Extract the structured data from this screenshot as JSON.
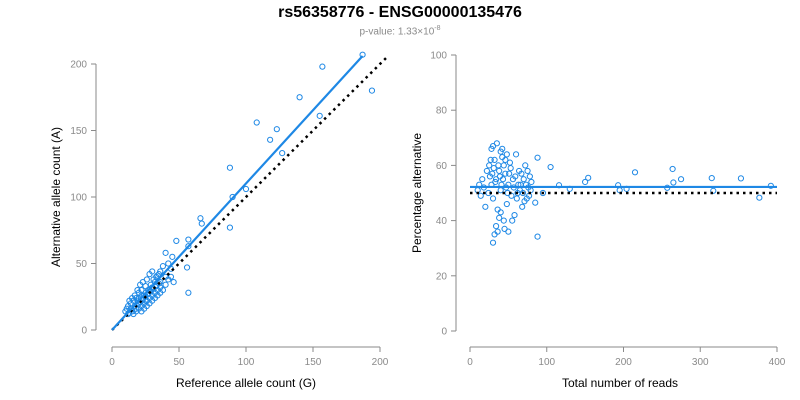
{
  "title": "rs56358776 - ENSG00000135476",
  "subtitle": {
    "prefix": "p-value: 1.33×10",
    "exponent": "-8"
  },
  "colors": {
    "points": "#1e88e5",
    "fit_line": "#1e88e5",
    "reference_line": "#000000",
    "axis": "#8a8a8a"
  },
  "chart_data": [
    {
      "type": "scatter",
      "xlabel": "Reference allele count (G)",
      "ylabel": "Alternative allele count (A)",
      "xlim": [
        0,
        200
      ],
      "ylim": [
        0,
        200
      ],
      "xticks": [
        0,
        50,
        100,
        150,
        200
      ],
      "yticks": [
        0,
        50,
        100,
        150,
        200
      ],
      "fit_line": {
        "x": [
          0,
          187
        ],
        "y": [
          0,
          206
        ]
      },
      "reference_line": {
        "x": [
          0,
          205
        ],
        "y": [
          0,
          205
        ]
      },
      "points": [
        [
          187,
          207
        ],
        [
          194,
          180
        ],
        [
          157,
          198
        ],
        [
          140,
          175
        ],
        [
          155,
          161
        ],
        [
          108,
          156
        ],
        [
          123,
          151
        ],
        [
          118,
          143
        ],
        [
          88,
          122
        ],
        [
          127,
          133
        ],
        [
          100,
          106
        ],
        [
          90,
          100
        ],
        [
          88,
          77
        ],
        [
          66,
          84
        ],
        [
          67,
          80
        ],
        [
          57,
          68
        ],
        [
          57,
          63
        ],
        [
          48,
          67
        ],
        [
          56,
          47
        ],
        [
          57,
          28
        ],
        [
          45,
          55
        ],
        [
          40,
          58
        ],
        [
          42,
          50
        ],
        [
          44,
          46
        ],
        [
          38,
          48
        ],
        [
          36,
          44
        ],
        [
          40,
          40
        ],
        [
          34,
          41
        ],
        [
          30,
          44
        ],
        [
          28,
          42
        ],
        [
          26,
          38
        ],
        [
          32,
          36
        ],
        [
          30,
          32
        ],
        [
          28,
          30
        ],
        [
          25,
          33
        ],
        [
          22,
          30
        ],
        [
          20,
          28
        ],
        [
          24,
          26
        ],
        [
          18,
          24
        ],
        [
          16,
          22
        ],
        [
          14,
          20
        ],
        [
          12,
          18
        ],
        [
          15,
          14
        ],
        [
          18,
          16
        ],
        [
          20,
          20
        ],
        [
          22,
          18
        ],
        [
          24,
          20
        ],
        [
          26,
          22
        ],
        [
          28,
          24
        ],
        [
          30,
          26
        ],
        [
          32,
          28
        ],
        [
          34,
          30
        ],
        [
          36,
          32
        ],
        [
          12,
          12
        ],
        [
          10,
          14
        ],
        [
          14,
          16
        ],
        [
          16,
          12
        ],
        [
          18,
          14
        ],
        [
          20,
          16
        ],
        [
          22,
          14
        ],
        [
          24,
          16
        ],
        [
          26,
          18
        ],
        [
          28,
          20
        ],
        [
          30,
          22
        ],
        [
          32,
          24
        ],
        [
          34,
          26
        ],
        [
          36,
          28
        ],
        [
          38,
          30
        ],
        [
          40,
          34
        ],
        [
          42,
          38
        ],
        [
          44,
          40
        ],
        [
          46,
          36
        ],
        [
          36,
          36
        ],
        [
          20,
          24
        ],
        [
          22,
          26
        ],
        [
          25,
          28
        ],
        [
          27,
          27
        ],
        [
          29,
          29
        ],
        [
          31,
          31
        ],
        [
          33,
          33
        ],
        [
          35,
          35
        ],
        [
          13,
          22
        ],
        [
          15,
          24
        ],
        [
          17,
          26
        ],
        [
          19,
          22
        ],
        [
          21,
          21
        ],
        [
          23,
          23
        ],
        [
          25,
          25
        ],
        [
          27,
          30
        ],
        [
          29,
          34
        ],
        [
          31,
          38
        ],
        [
          33,
          40
        ],
        [
          35,
          42
        ],
        [
          19,
          30
        ],
        [
          21,
          34
        ],
        [
          23,
          36
        ],
        [
          17,
          18
        ],
        [
          11,
          16
        ],
        [
          13,
          13
        ],
        [
          25,
          22
        ]
      ]
    },
    {
      "type": "scatter",
      "xlabel": "Total number of reads",
      "ylabel": "Percentage alternative",
      "xlim": [
        0,
        400
      ],
      "ylim": [
        0,
        100
      ],
      "xticks": [
        0,
        100,
        200,
        300,
        400
      ],
      "yticks": [
        0,
        20,
        40,
        60,
        80,
        100
      ],
      "fit_line": {
        "x": [
          0,
          400
        ],
        "y": [
          52.2,
          52.2
        ]
      },
      "reference_line": {
        "x": [
          0,
          400
        ],
        "y": [
          50,
          50
        ]
      },
      "points": [
        [
          392,
          52.6
        ],
        [
          353,
          55.3
        ],
        [
          377,
          48.3
        ],
        [
          315,
          55.4
        ],
        [
          264,
          58.7
        ],
        [
          265,
          53.8
        ],
        [
          275,
          55.0
        ],
        [
          317,
          50.8
        ],
        [
          215,
          57.5
        ],
        [
          257,
          51.9
        ],
        [
          204,
          51.5
        ],
        [
          193,
          52.8
        ],
        [
          195,
          51.0
        ],
        [
          150,
          54.0
        ],
        [
          154,
          55.5
        ],
        [
          130,
          51.5
        ],
        [
          116,
          52.8
        ],
        [
          105,
          59.4
        ],
        [
          95,
          50.0
        ],
        [
          88,
          34.2
        ],
        [
          88,
          62.8
        ],
        [
          85,
          46.5
        ],
        [
          80,
          54.0
        ],
        [
          78,
          56.0
        ],
        [
          76,
          52.0
        ],
        [
          74,
          48.0
        ],
        [
          72,
          60.0
        ],
        [
          70,
          55.0
        ],
        [
          68,
          45.0
        ],
        [
          66,
          53.0
        ],
        [
          64,
          58.0
        ],
        [
          62,
          50.0
        ],
        [
          60,
          64.0
        ],
        [
          58,
          42.0
        ],
        [
          56,
          55.0
        ],
        [
          54,
          49.0
        ],
        [
          52,
          61.0
        ],
        [
          50,
          53.0
        ],
        [
          48,
          46.0
        ],
        [
          46,
          57.0
        ],
        [
          44,
          40.0
        ],
        [
          42,
          66.0
        ],
        [
          40,
          51.0
        ],
        [
          38,
          58.0
        ],
        [
          36,
          44.0
        ],
        [
          34,
          55.0
        ],
        [
          32,
          62.0
        ],
        [
          30,
          48.0
        ],
        [
          28,
          53.0
        ],
        [
          26,
          56.0
        ],
        [
          24,
          50.0
        ],
        [
          22,
          58.0
        ],
        [
          20,
          45.0
        ],
        [
          18,
          52.0
        ],
        [
          16,
          55.0
        ],
        [
          14,
          49.0
        ],
        [
          12,
          53.0
        ],
        [
          10,
          51.0
        ],
        [
          30,
          32.0
        ],
        [
          32,
          35.0
        ],
        [
          34,
          38.0
        ],
        [
          36,
          36.0
        ],
        [
          38,
          41.0
        ],
        [
          40,
          43.0
        ],
        [
          45,
          37.0
        ],
        [
          50,
          36.0
        ],
        [
          55,
          40.0
        ],
        [
          28,
          66.0
        ],
        [
          30,
          67.0
        ],
        [
          35,
          68.0
        ],
        [
          40,
          65.0
        ],
        [
          42,
          63.0
        ],
        [
          44,
          60.0
        ],
        [
          46,
          62.0
        ],
        [
          48,
          64.0
        ],
        [
          25,
          60.0
        ],
        [
          27,
          62.0
        ],
        [
          29,
          57.0
        ],
        [
          31,
          59.0
        ],
        [
          33,
          54.0
        ],
        [
          37,
          60.0
        ],
        [
          39,
          56.0
        ],
        [
          41,
          53.0
        ],
        [
          43,
          55.0
        ],
        [
          47,
          52.0
        ],
        [
          49,
          50.0
        ],
        [
          51,
          57.0
        ],
        [
          53,
          59.0
        ],
        [
          57,
          52.0
        ],
        [
          59,
          56.0
        ],
        [
          61,
          48.0
        ],
        [
          63,
          53.0
        ],
        [
          65,
          51.0
        ],
        [
          67,
          57.0
        ],
        [
          69,
          50.0
        ],
        [
          71,
          47.0
        ],
        [
          73,
          53.0
        ],
        [
          75,
          58.0
        ],
        [
          77,
          49.0
        ],
        [
          79,
          51.0
        ]
      ]
    }
  ]
}
